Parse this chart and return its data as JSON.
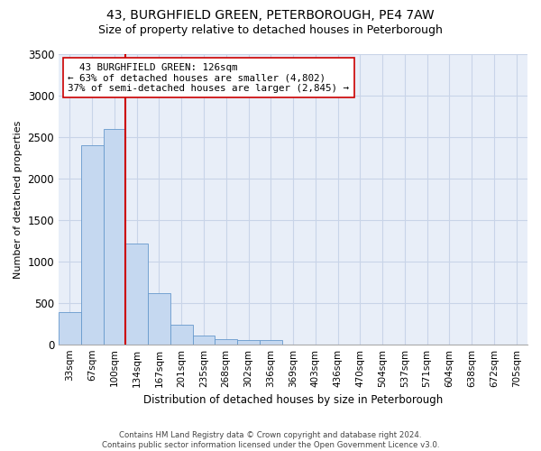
{
  "title1": "43, BURGHFIELD GREEN, PETERBOROUGH, PE4 7AW",
  "title2": "Size of property relative to detached houses in Peterborough",
  "xlabel": "Distribution of detached houses by size in Peterborough",
  "ylabel": "Number of detached properties",
  "footnote": "Contains HM Land Registry data © Crown copyright and database right 2024.\nContains public sector information licensed under the Open Government Licence v3.0.",
  "categories": [
    "33sqm",
    "67sqm",
    "100sqm",
    "134sqm",
    "167sqm",
    "201sqm",
    "235sqm",
    "268sqm",
    "302sqm",
    "336sqm",
    "369sqm",
    "403sqm",
    "436sqm",
    "470sqm",
    "504sqm",
    "537sqm",
    "571sqm",
    "604sqm",
    "638sqm",
    "672sqm",
    "705sqm"
  ],
  "values": [
    390,
    2400,
    2600,
    1220,
    620,
    240,
    100,
    60,
    55,
    50,
    0,
    0,
    0,
    0,
    0,
    0,
    0,
    0,
    0,
    0,
    0
  ],
  "bar_color": "#c5d8f0",
  "bar_edge_color": "#6699cc",
  "vline_color": "#cc0000",
  "annotation_text": "  43 BURGHFIELD GREEN: 126sqm\n← 63% of detached houses are smaller (4,802)\n37% of semi-detached houses are larger (2,845) →",
  "annotation_box_color": "#ffffff",
  "annotation_box_edge": "#cc0000",
  "ylim": [
    0,
    3500
  ],
  "yticks": [
    0,
    500,
    1000,
    1500,
    2000,
    2500,
    3000,
    3500
  ],
  "grid_color": "#c8d4e8",
  "bg_color": "#e8eef8",
  "title1_fontsize": 10,
  "title2_fontsize": 9
}
